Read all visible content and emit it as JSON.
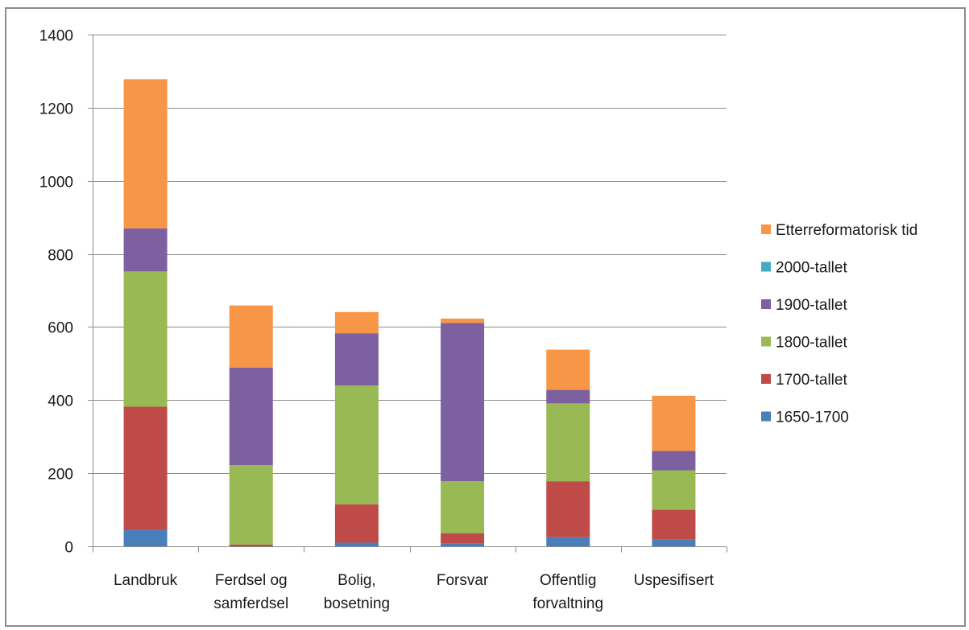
{
  "chart_data": {
    "type": "bar",
    "stacked": true,
    "categories": [
      [
        "Landbruk"
      ],
      [
        "Ferdsel og",
        "samferdsel"
      ],
      [
        "Bolig,",
        "bosetning"
      ],
      [
        "Forsvar"
      ],
      [
        "Offentlig",
        "forvaltning"
      ],
      [
        "Uspesifisert"
      ]
    ],
    "series": [
      {
        "name": "1650-1700",
        "color": "#4a7ebb",
        "values": [
          45,
          0,
          10,
          8,
          25,
          18
        ]
      },
      {
        "name": "1700-tallet",
        "color": "#be4b48",
        "values": [
          337,
          5,
          105,
          28,
          153,
          82
        ]
      },
      {
        "name": "1800-tallet",
        "color": "#98b954",
        "values": [
          370,
          217,
          325,
          142,
          213,
          108
        ]
      },
      {
        "name": "1900-tallet",
        "color": "#7d60a0",
        "values": [
          118,
          267,
          143,
          433,
          37,
          53
        ]
      },
      {
        "name": "2000-tallet",
        "color": "#46aac5",
        "values": [
          0,
          0,
          0,
          0,
          0,
          0
        ]
      },
      {
        "name": "Etterreformatorisk tid",
        "color": "#f79646",
        "values": [
          408,
          170,
          58,
          12,
          110,
          151
        ]
      }
    ],
    "legend_order": [
      "Etterreformatorisk tid",
      "2000-tallet",
      "1900-tallet",
      "1800-tallet",
      "1700-tallet",
      "1650-1700"
    ],
    "ylim": [
      0,
      1400
    ],
    "yticks": [
      "0",
      "200",
      "400",
      "600",
      "800",
      "1000",
      "1200",
      "1400"
    ],
    "grid": true,
    "legend_position": "right",
    "title": "",
    "xlabel": "",
    "ylabel": ""
  }
}
